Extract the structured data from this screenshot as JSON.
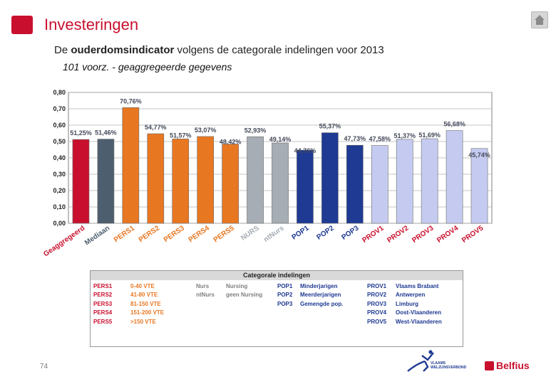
{
  "header": {
    "title": "Investeringen",
    "subtitle_bold": "ouderdomsindicator",
    "subtitle_pre": "De ",
    "subtitle_post": "  volgens de categorale indelingen voor 2013",
    "subsubtitle": "101  voorz. - geaggregeerde gegevens"
  },
  "chart_data": {
    "type": "bar",
    "categories": [
      "Geaggregeerd",
      "Mediaan",
      "PERS1",
      "PERS2",
      "PERS3",
      "PERS4",
      "PERS5",
      "NURS",
      "ntNurs",
      "POP1",
      "POP2",
      "POP3",
      "PROV1",
      "PROV2",
      "PROV3",
      "PROV4",
      "PROV5"
    ],
    "values": [
      0.5125,
      0.5146,
      0.7076,
      0.5477,
      0.5157,
      0.5307,
      0.4842,
      0.5293,
      0.4914,
      0.4476,
      0.5537,
      0.4773,
      0.4758,
      0.5137,
      0.5169,
      0.5668,
      0.4574
    ],
    "labels": [
      "51,25%",
      "51,46%",
      "70,76%",
      "54,77%",
      "51,57%",
      "53,07%",
      "48,42%",
      "52,93%",
      "49,14%",
      "44,76%",
      "55,37%",
      "47,73%",
      "47,58%",
      "51,37%",
      "51,69%",
      "56,68%",
      "45,74%"
    ],
    "colors": [
      "#c8102e",
      "#4d5e6e",
      "#e87722",
      "#e87722",
      "#e87722",
      "#e87722",
      "#e87722",
      "#a6adb4",
      "#a6adb4",
      "#1f3a93",
      "#1f3a93",
      "#1f3a93",
      "#c5cbf0",
      "#c5cbf0",
      "#c5cbf0",
      "#c5cbf0",
      "#c5cbf0"
    ],
    "yticks": [
      "0,00",
      "0,10",
      "0,20",
      "0,30",
      "0,40",
      "0,50",
      "0,60",
      "0,70",
      "0,80"
    ],
    "ylim": [
      0,
      0.8
    ],
    "grid": true,
    "title": "",
    "xlabel": "",
    "ylabel": ""
  },
  "legend": {
    "title": "Categorale indelingen",
    "pers_codes": [
      "PERS1",
      "PERS2",
      "PERS3",
      "PERS4",
      "PERS5"
    ],
    "pers_desc": [
      "0-40 VTE",
      "41-80 VTE",
      "81-150 VTE",
      "151-200 VTE",
      ">150 VTE"
    ],
    "nurs_codes": [
      "Nurs",
      "ntNurs"
    ],
    "nurs_desc": [
      "Nursing",
      "geen Nursing"
    ],
    "pop_codes": [
      "POP1",
      "POP2",
      "POP3"
    ],
    "pop_desc": [
      "Minderjarigen",
      "Meerderjarigen",
      "Gemengde pop."
    ],
    "prov_codes": [
      "PROV1",
      "PROV2",
      "PROV3",
      "PROV4",
      "PROV5"
    ],
    "prov_desc": [
      "Vlaams Brabant",
      "Antwerpen",
      "Limburg",
      "Oost-Vlaanderen",
      "West-Vlaanderen"
    ]
  },
  "footer": {
    "page_number": "74",
    "vv_line1": "VLAAMS",
    "vv_line2": "WELZIJNSVERBOND",
    "brand": "Belfius"
  },
  "colors": {
    "accent": "#c8102e",
    "orange": "#e87722",
    "navy": "#1f3a93"
  }
}
